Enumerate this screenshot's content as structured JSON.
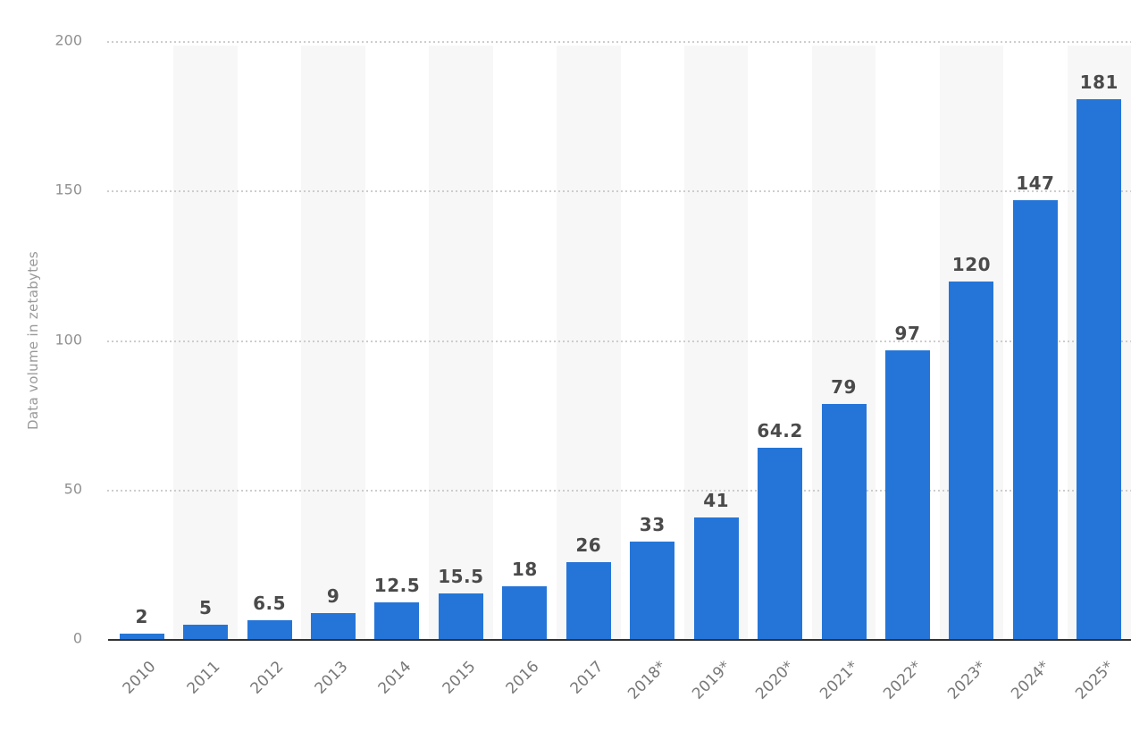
{
  "chart_data": {
    "type": "bar",
    "categories": [
      "2010",
      "2011",
      "2012",
      "2013",
      "2014",
      "2015",
      "2016",
      "2017",
      "2018*",
      "2019*",
      "2020*",
      "2021*",
      "2022*",
      "2023*",
      "2024*",
      "2025*"
    ],
    "values": [
      2,
      5,
      6.5,
      9,
      12.5,
      15.5,
      18,
      26,
      33,
      41,
      64.2,
      79,
      97,
      120,
      147,
      181
    ],
    "title": "",
    "xlabel": "",
    "ylabel": "Data volume in zetabytes",
    "ylim": [
      0,
      200
    ],
    "yticks": [
      0,
      50,
      100,
      150,
      200
    ],
    "grid": "horizontal-dotted",
    "legend": "none",
    "colors": {
      "bar": "#2575d8",
      "column_band": "#f7f7f7",
      "gridline": "#cdcdcd",
      "axis_line": "#333333",
      "y_tick_label": "#919191",
      "value_label": "#4a4a4a",
      "x_label": "#787878",
      "y_axis_title": "#999999",
      "background": "#ffffff"
    }
  }
}
